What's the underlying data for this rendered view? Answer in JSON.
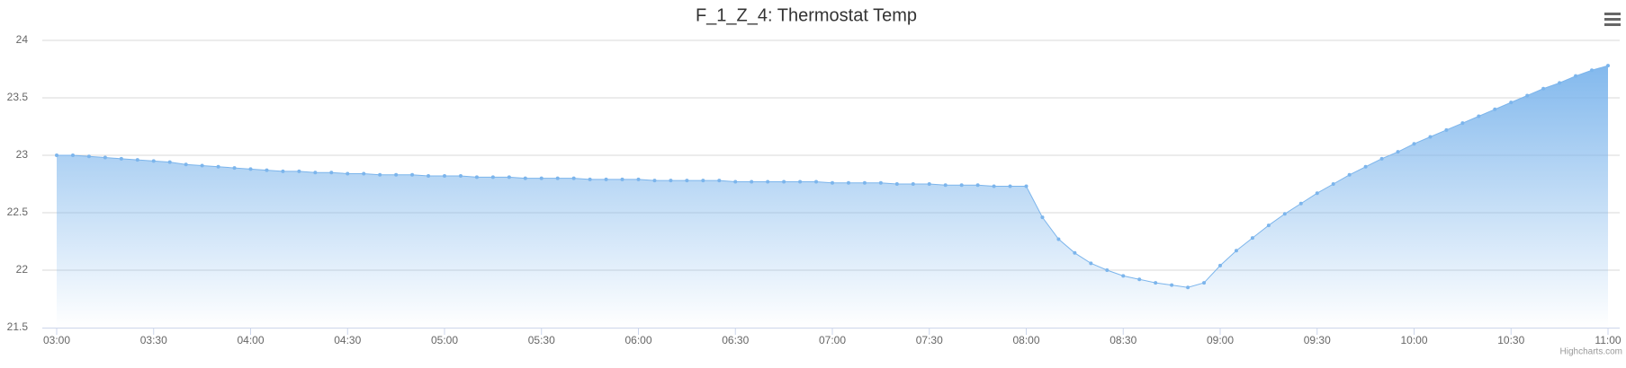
{
  "chart_data": {
    "type": "area",
    "title": "F_1_Z_4: Thermostat Temp",
    "credits": "Highcharts.com",
    "x": [
      "03:00",
      "03:05",
      "03:10",
      "03:15",
      "03:20",
      "03:25",
      "03:30",
      "03:35",
      "03:40",
      "03:45",
      "03:50",
      "03:55",
      "04:00",
      "04:05",
      "04:10",
      "04:15",
      "04:20",
      "04:25",
      "04:30",
      "04:35",
      "04:40",
      "04:45",
      "04:50",
      "04:55",
      "05:00",
      "05:05",
      "05:10",
      "05:15",
      "05:20",
      "05:25",
      "05:30",
      "05:35",
      "05:40",
      "05:45",
      "05:50",
      "05:55",
      "06:00",
      "06:05",
      "06:10",
      "06:15",
      "06:20",
      "06:25",
      "06:30",
      "06:35",
      "06:40",
      "06:45",
      "06:50",
      "06:55",
      "07:00",
      "07:05",
      "07:10",
      "07:15",
      "07:20",
      "07:25",
      "07:30",
      "07:35",
      "07:40",
      "07:45",
      "07:50",
      "07:55",
      "08:00",
      "08:05",
      "08:10",
      "08:15",
      "08:20",
      "08:25",
      "08:30",
      "08:35",
      "08:40",
      "08:45",
      "08:50",
      "08:55",
      "09:00",
      "09:05",
      "09:10",
      "09:15",
      "09:20",
      "09:25",
      "09:30",
      "09:35",
      "09:40",
      "09:45",
      "09:50",
      "09:55",
      "10:00",
      "10:05",
      "10:10",
      "10:15",
      "10:20",
      "10:25",
      "10:30",
      "10:35",
      "10:40",
      "10:45",
      "10:50",
      "10:55",
      "11:00"
    ],
    "series": [
      {
        "color": "#7cb5ec",
        "values": [
          23.0,
          23.0,
          22.99,
          22.98,
          22.97,
          22.96,
          22.95,
          22.94,
          22.92,
          22.91,
          22.9,
          22.89,
          22.88,
          22.87,
          22.86,
          22.86,
          22.85,
          22.85,
          22.84,
          22.84,
          22.83,
          22.83,
          22.83,
          22.82,
          22.82,
          22.82,
          22.81,
          22.81,
          22.81,
          22.8,
          22.8,
          22.8,
          22.8,
          22.79,
          22.79,
          22.79,
          22.79,
          22.78,
          22.78,
          22.78,
          22.78,
          22.78,
          22.77,
          22.77,
          22.77,
          22.77,
          22.77,
          22.77,
          22.76,
          22.76,
          22.76,
          22.76,
          22.75,
          22.75,
          22.75,
          22.74,
          22.74,
          22.74,
          22.73,
          22.73,
          22.73,
          22.46,
          22.27,
          22.15,
          22.06,
          22.0,
          21.95,
          21.92,
          21.89,
          21.87,
          21.85,
          21.89,
          22.04,
          22.17,
          22.28,
          22.39,
          22.49,
          22.58,
          22.67,
          22.75,
          22.83,
          22.9,
          22.97,
          23.03,
          23.1,
          23.16,
          23.22,
          23.28,
          23.34,
          23.4,
          23.46,
          23.52,
          23.58,
          23.63,
          23.69,
          23.74,
          23.78
        ]
      }
    ],
    "xticks": [
      "03:00",
      "03:30",
      "04:00",
      "04:30",
      "05:00",
      "05:30",
      "06:00",
      "06:30",
      "07:00",
      "07:30",
      "08:00",
      "08:30",
      "09:00",
      "09:30",
      "10:00",
      "10:30",
      "11:00"
    ],
    "ylim": [
      21.5,
      24
    ],
    "yticks": [
      21.5,
      22,
      22.5,
      23,
      23.5,
      24
    ],
    "grid": true
  }
}
